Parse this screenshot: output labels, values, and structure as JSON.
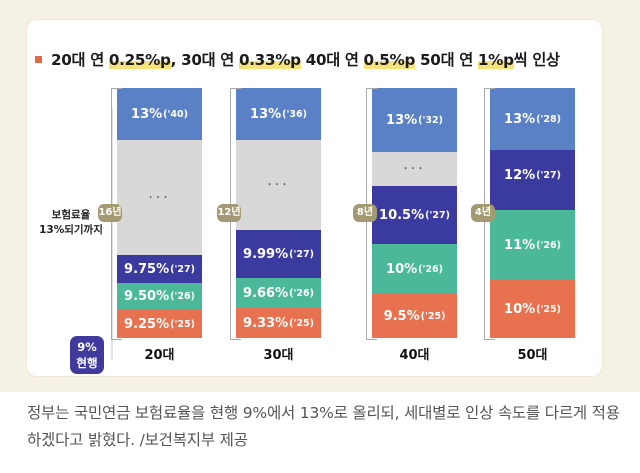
{
  "headline": {
    "parts": [
      "20대 연 ",
      "0.25%p",
      ", 30대 연 ",
      "0.33%p",
      " 40대 연 ",
      "0.5%p",
      " 50대 연 ",
      "1%p",
      "씩 인상"
    ]
  },
  "axis": {
    "label_line1": "보험료율",
    "label_line2": "13%되기까지",
    "current_line1": "9%",
    "current_line2": "현행"
  },
  "chart_data": {
    "type": "bar",
    "title": "20대 연 0.25%p, 30대 연 0.33%p 40대 연 0.5%p 50대 연 1%p씩 인상",
    "categories": [
      "20대",
      "30대",
      "40대",
      "50대"
    ],
    "years_to_13": [
      "16년",
      "12년",
      "8년",
      "4년"
    ],
    "series": [
      {
        "category": "20대",
        "steps": [
          {
            "value": "9.25%",
            "year": "('25)"
          },
          {
            "value": "9.50%",
            "year": "('26)"
          },
          {
            "value": "9.75%",
            "year": "('27)"
          },
          {
            "value": "13%",
            "year": "('40)"
          }
        ]
      },
      {
        "category": "30대",
        "steps": [
          {
            "value": "9.33%",
            "year": "('25)"
          },
          {
            "value": "9.66%",
            "year": "('26)"
          },
          {
            "value": "9.99%",
            "year": "('27)"
          },
          {
            "value": "13%",
            "year": "('36)"
          }
        ]
      },
      {
        "category": "40대",
        "steps": [
          {
            "value": "9.5%",
            "year": "('25)"
          },
          {
            "value": "10%",
            "year": "('26)"
          },
          {
            "value": "10.5%",
            "year": "('27)"
          },
          {
            "value": "13%",
            "year": "('32)"
          }
        ]
      },
      {
        "category": "50대",
        "steps": [
          {
            "value": "10%",
            "year": "('25)"
          },
          {
            "value": "11%",
            "year": "('26)"
          },
          {
            "value": "12%",
            "year": "('27)"
          },
          {
            "value": "13%",
            "year": "('28)"
          }
        ]
      }
    ],
    "gap_text": "···",
    "colors": {
      "y25": "#e8714f",
      "y26": "#4cb89a",
      "y27": "#3b3a9e",
      "top": "#5a80c6",
      "gap": "#d8d8d8"
    }
  },
  "caption": "정부는 국민연금 보험료율을 현행 9%에서 13%로 올리되, 세대별로 인상 속도를 다르게 적용하겠다고 밝혔다. /보건복지부 제공"
}
